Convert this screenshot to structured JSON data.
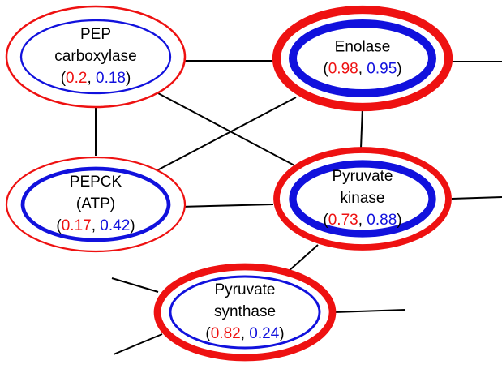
{
  "format": {
    "open": "(",
    "sep": ", ",
    "close": ")"
  },
  "nodes": [
    {
      "label": [
        "PEP",
        "carboxylase"
      ],
      "red": 0.2,
      "blue": 0.18
    },
    {
      "label": [
        "Enolase"
      ],
      "red": 0.98,
      "blue": 0.95
    },
    {
      "label": [
        "PEPCK",
        "(ATP)"
      ],
      "red": 0.17,
      "blue": 0.42
    },
    {
      "label": [
        "Pyruvate",
        "kinase"
      ],
      "red": 0.73,
      "blue": 0.88
    },
    {
      "label": [
        "Pyruvate",
        "synthase"
      ],
      "red": 0.82,
      "blue": 0.24
    }
  ]
}
